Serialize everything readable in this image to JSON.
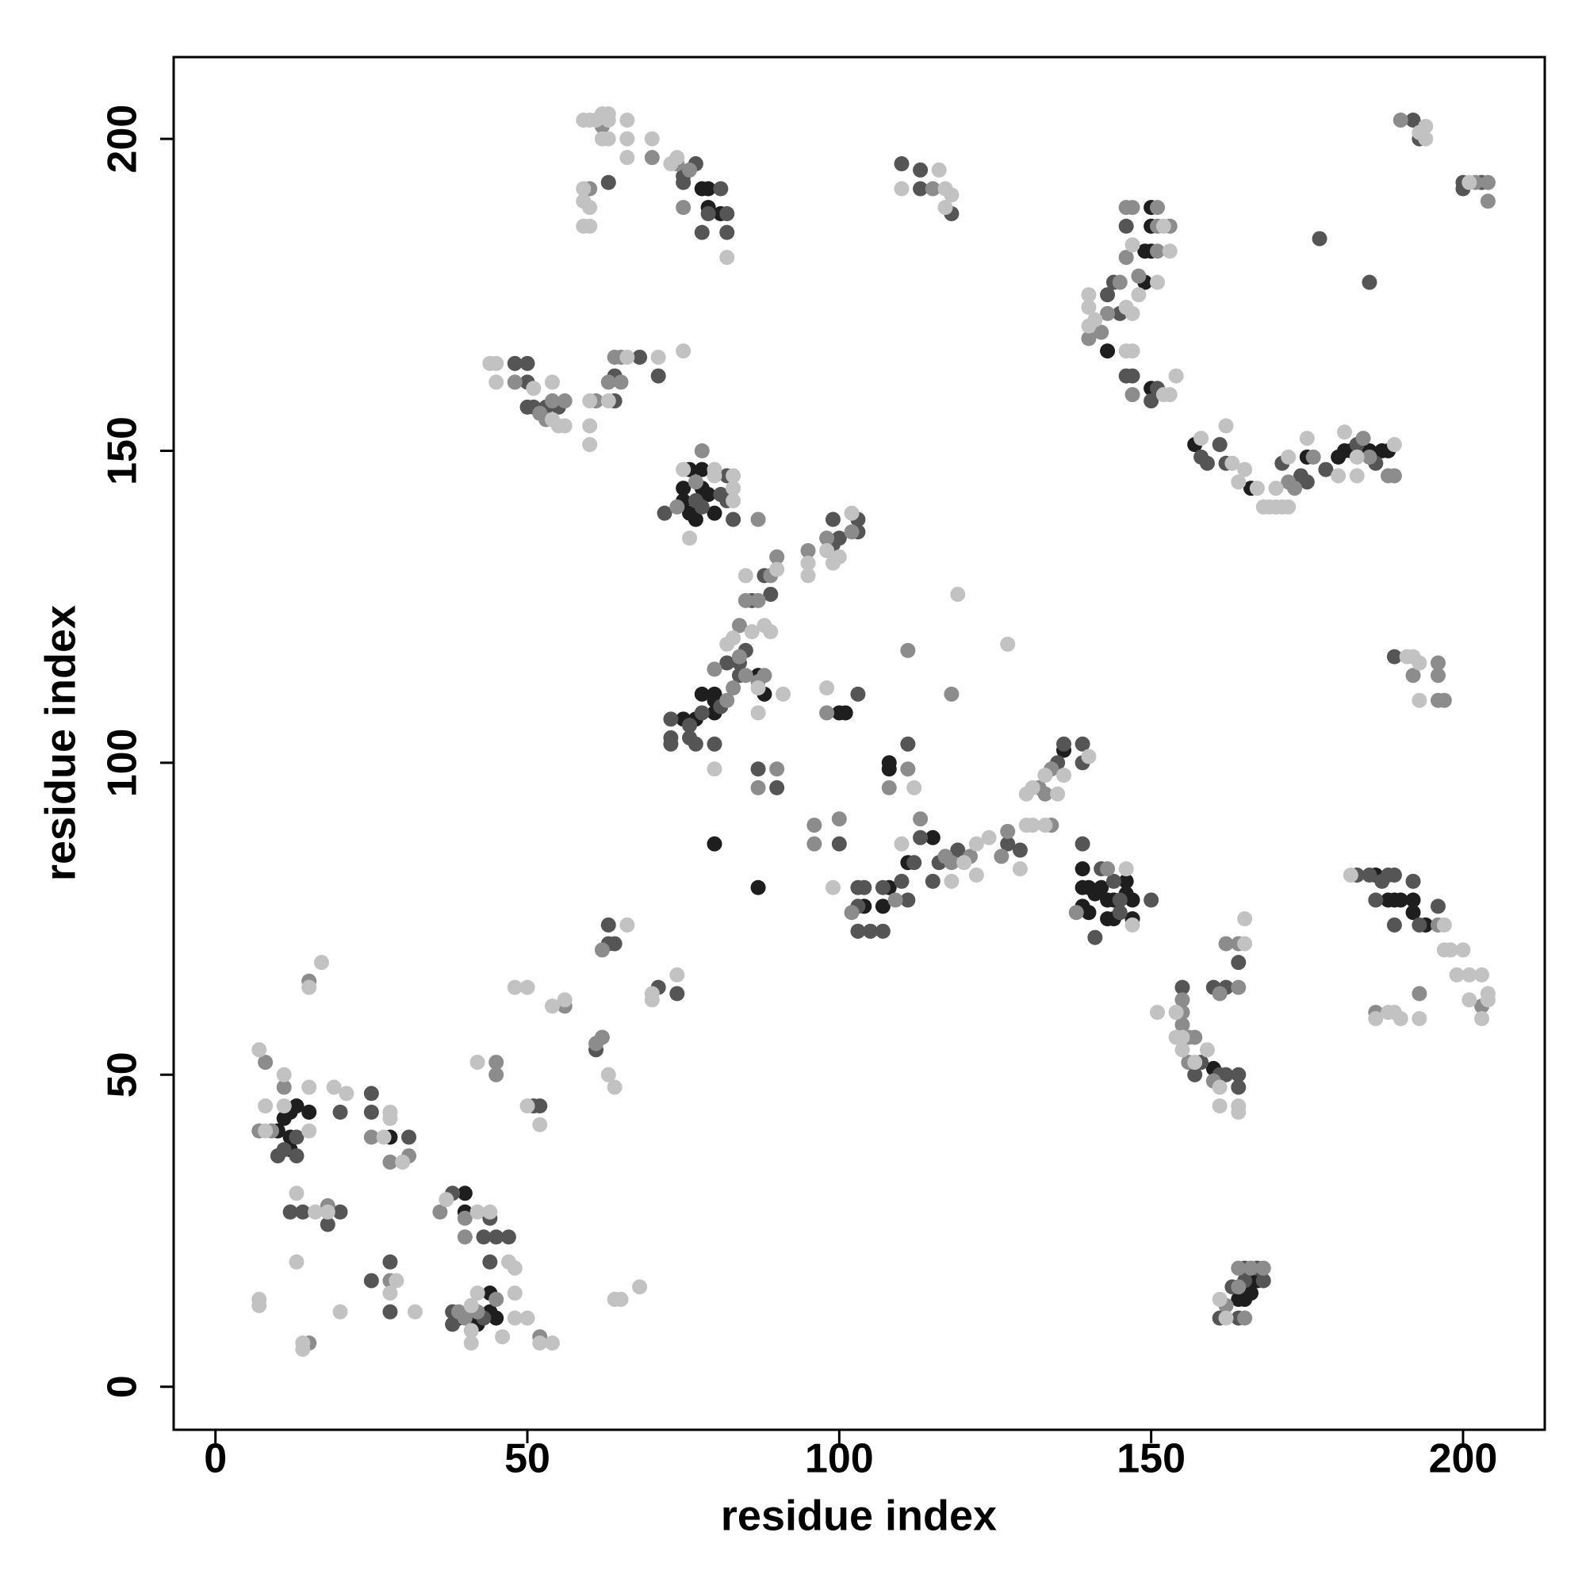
{
  "chart_data": {
    "type": "scatter",
    "x_label": "residue index",
    "y_label": "residue index",
    "xlim": [
      -6.7,
      213.1
    ],
    "ylim": [
      -6.9,
      213.1
    ],
    "xticks": [
      0,
      50,
      100,
      150,
      200
    ],
    "yticks": [
      0,
      50,
      100,
      150,
      200
    ],
    "grid": false,
    "series": [
      {
        "color": "#1e1e1e",
        "x": [
          10,
          11,
          12,
          12,
          12,
          13,
          15,
          28,
          40,
          40,
          44,
          44,
          45,
          39,
          41,
          42,
          80,
          87,
          104,
          107,
          108,
          111,
          115,
          136,
          108,
          108,
          75,
          77,
          78,
          80,
          80,
          80,
          87,
          88,
          100,
          101,
          75,
          75,
          76,
          76,
          77,
          78,
          78,
          79,
          80,
          78,
          79,
          79,
          81,
          150,
          150,
          149,
          150,
          149,
          143,
          150,
          157,
          166,
          175,
          180,
          181,
          182,
          185,
          187,
          188,
          139,
          139,
          139,
          140,
          140,
          141,
          142,
          143,
          143,
          144,
          144,
          146,
          146,
          147,
          147,
          186,
          188,
          189,
          190,
          192,
          192,
          194,
          160,
          164,
          165,
          166,
          167,
          166
        ],
        "values": [
          41,
          43,
          44,
          40,
          38,
          45,
          44,
          40,
          31,
          28,
          15,
          12,
          11,
          11,
          12,
          10,
          87,
          80,
          77,
          77,
          80,
          84,
          88,
          102,
          100,
          99,
          107,
          107,
          111,
          111,
          110,
          108,
          114,
          111,
          108,
          108,
          142,
          144,
          147,
          140,
          139,
          144,
          147,
          143,
          140,
          192,
          192,
          189,
          188,
          189,
          186,
          182,
          182,
          177,
          166,
          160,
          151,
          144,
          149,
          149,
          150,
          150,
          150,
          150,
          150,
          83,
          80,
          77,
          76,
          80,
          79,
          80,
          78,
          75,
          78,
          75,
          81,
          79,
          78,
          75,
          82,
          78,
          78,
          78,
          78,
          76,
          74,
          51,
          14,
          14,
          17,
          17,
          15
        ]
      },
      {
        "color": "#555555",
        "x": [
          13,
          11,
          13,
          10,
          25,
          25,
          31,
          20,
          14,
          12,
          18,
          20,
          25,
          28,
          28,
          38,
          44,
          43,
          45,
          47,
          44,
          43,
          38,
          38,
          51,
          52,
          61,
          63,
          63,
          64,
          71,
          74,
          87,
          90,
          100,
          103,
          103,
          105,
          103,
          107,
          107,
          110,
          111,
          112,
          113,
          116,
          115,
          119,
          127,
          129,
          135,
          136,
          139,
          139,
          111,
          104,
          73,
          73,
          73,
          76,
          76,
          77,
          78,
          81,
          80,
          84,
          84,
          82,
          85,
          86,
          89,
          88,
          103,
          99,
          100,
          99,
          103,
          103,
          72,
          77,
          78,
          81,
          82,
          82,
          83,
          48,
          50,
          50,
          50,
          51,
          53,
          55,
          64,
          64,
          68,
          71,
          75,
          75,
          77,
          79,
          81,
          82,
          82,
          78,
          63,
          110,
          113,
          113,
          118,
          146,
          144,
          143,
          145,
          146,
          147,
          151,
          150,
          158,
          159,
          161,
          162,
          171,
          174,
          175,
          178,
          183,
          186,
          192,
          193,
          200,
          203,
          200,
          177,
          185,
          189,
          139,
          142,
          144,
          145,
          145,
          150,
          141,
          183,
          185,
          187,
          188,
          189,
          192,
          193,
          196,
          186,
          189,
          155,
          157,
          158,
          161,
          162,
          164,
          164,
          160,
          162,
          164,
          161,
          164,
          165,
          168,
          165,
          167,
          163
        ],
        "values": [
          40,
          38,
          37,
          37,
          47,
          44,
          40,
          44,
          28,
          28,
          26,
          28,
          17,
          20,
          12,
          31,
          27,
          24,
          24,
          24,
          20,
          11,
          12,
          10,
          45,
          45,
          54,
          74,
          71,
          71,
          64,
          63,
          99,
          96,
          87,
          80,
          77,
          73,
          73,
          73,
          80,
          81,
          78,
          84,
          88,
          84,
          81,
          86,
          87,
          86,
          100,
          103,
          103,
          100,
          103,
          80,
          107,
          104,
          103,
          106,
          104,
          103,
          108,
          109,
          103,
          114,
          116,
          116,
          118,
          126,
          127,
          130,
          111,
          135,
          136,
          139,
          137,
          139,
          140,
          142,
          141,
          143,
          142,
          146,
          139,
          164,
          164,
          161,
          157,
          157,
          157,
          157,
          158,
          162,
          165,
          162,
          194,
          193,
          196,
          188,
          192,
          188,
          185,
          185,
          193,
          196,
          195,
          192,
          188,
          186,
          177,
          175,
          172,
          162,
          162,
          160,
          158,
          149,
          148,
          151,
          148,
          148,
          146,
          145,
          147,
          151,
          148,
          203,
          200,
          193,
          193,
          192,
          184,
          177,
          117,
          87,
          83,
          81,
          78,
          76,
          78,
          72,
          82,
          82,
          81,
          82,
          82,
          81,
          74,
          77,
          78,
          74,
          64,
          50,
          52,
          50,
          50,
          50,
          48,
          64,
          64,
          68,
          11,
          11,
          17,
          17,
          19,
          19,
          16
        ]
      },
      {
        "color": "#8c8c8c",
        "x": [
          7,
          9,
          8,
          11,
          25,
          31,
          28,
          18,
          28,
          15,
          15,
          36,
          40,
          40,
          45,
          39,
          40,
          42,
          52,
          45,
          45,
          56,
          62,
          61,
          62,
          87,
          90,
          96,
          96,
          100,
          102,
          109,
          113,
          117,
          118,
          121,
          126,
          127,
          132,
          134,
          133,
          134,
          108,
          111,
          111,
          118,
          82,
          83,
          85,
          84,
          87,
          88,
          84,
          85,
          87,
          89,
          90,
          80,
          98,
          95,
          98,
          102,
          87,
          77,
          78,
          74,
          48,
          52,
          53,
          54,
          56,
          61,
          63,
          65,
          64,
          65,
          62,
          70,
          74,
          76,
          75,
          60,
          115,
          146,
          147,
          151,
          151,
          153,
          151,
          146,
          145,
          148,
          143,
          140,
          142,
          147,
          172,
          173,
          176,
          184,
          185,
          188,
          189,
          190,
          202,
          204,
          204,
          196,
          192,
          196,
          196,
          197,
          138,
          143,
          196,
          203,
          186,
          193,
          155,
          155,
          155,
          156,
          156,
          160,
          161,
          162,
          164,
          164,
          157,
          162,
          165,
          164,
          166,
          168,
          164
        ],
        "values": [
          41,
          41,
          52,
          48,
          40,
          37,
          36,
          29,
          17,
          7,
          65,
          28,
          27,
          24,
          14,
          12,
          11,
          12,
          8,
          52,
          50,
          61,
          56,
          55,
          70,
          96,
          99,
          90,
          87,
          91,
          76,
          78,
          91,
          85,
          84,
          85,
          85,
          89,
          96,
          99,
          95,
          90,
          96,
          99,
          118,
          111,
          110,
          112,
          114,
          117,
          113,
          114,
          122,
          126,
          126,
          130,
          133,
          115,
          108,
          134,
          136,
          137,
          139,
          145,
          150,
          141,
          161,
          156,
          155,
          158,
          158,
          158,
          161,
          161,
          165,
          165,
          202,
          197,
          196,
          195,
          189,
          192,
          192,
          189,
          189,
          189,
          186,
          186,
          182,
          181,
          177,
          178,
          172,
          168,
          169,
          159,
          145,
          144,
          149,
          152,
          149,
          146,
          146,
          203,
          193,
          193,
          190,
          116,
          114,
          114,
          110,
          110,
          76,
          83,
          74,
          61,
          60,
          63,
          62,
          60,
          58,
          56,
          52,
          49,
          63,
          71,
          71,
          64,
          56,
          13,
          11,
          19,
          19,
          19,
          16
        ]
      },
      {
        "color": "#c2c2c2",
        "x": [
          8,
          15,
          8,
          7,
          11,
          15,
          19,
          21,
          27,
          28,
          28,
          30,
          11,
          13,
          16,
          18,
          13,
          29,
          28,
          32,
          20,
          7,
          7,
          14,
          14,
          15,
          17,
          37,
          42,
          44,
          47,
          48,
          48,
          41,
          42,
          41,
          41,
          48,
          50,
          54,
          52,
          46,
          42,
          48,
          50,
          50,
          52,
          54,
          56,
          63,
          64,
          64,
          65,
          68,
          66,
          70,
          70,
          74,
          99,
          110,
          118,
          120,
          122,
          122,
          124,
          129,
          130,
          130,
          131,
          133,
          136,
          140,
          135,
          131,
          133,
          112,
          119,
          127,
          80,
          82,
          83,
          86,
          87,
          87,
          89,
          88,
          85,
          90,
          91,
          98,
          95,
          95,
          98,
          102,
          100,
          99,
          75,
          80,
          80,
          83,
          83,
          83,
          76,
          44,
          45,
          45,
          51,
          54,
          55,
          56,
          54,
          60,
          60,
          60,
          63,
          71,
          75,
          66,
          59,
          60,
          61,
          62,
          63,
          63,
          62,
          63,
          66,
          66,
          66,
          70,
          73,
          74,
          82,
          59,
          59,
          60,
          59,
          60,
          110,
          116,
          117,
          117,
          118,
          152,
          147,
          153,
          151,
          148,
          140,
          140,
          141,
          140,
          146,
          147,
          152,
          153,
          154,
          146,
          147,
          158,
          162,
          163,
          164,
          165,
          167,
          168,
          169,
          170,
          170,
          171,
          172,
          172,
          175,
          181,
          183,
          189,
          183,
          180,
          193,
          194,
          194,
          201,
          191,
          192,
          193,
          193,
          146,
          147,
          182,
          197,
          197,
          198,
          199,
          200,
          201,
          201,
          203,
          204,
          204,
          203,
          186,
          188,
          189,
          190,
          193,
          151,
          154,
          154,
          155,
          155,
          157,
          159,
          161,
          161,
          164,
          164,
          165,
          165,
          162,
          161
        ],
        "values": [
          41,
          41,
          45,
          54,
          50,
          48,
          48,
          47,
          40,
          43,
          44,
          36,
          45,
          31,
          28,
          28,
          20,
          17,
          15,
          12,
          12,
          13,
          14,
          7,
          6,
          64,
          68,
          30,
          28,
          28,
          20,
          19,
          15,
          13,
          15,
          9,
          7,
          11,
          11,
          7,
          7,
          8,
          52,
          64,
          64,
          45,
          42,
          61,
          62,
          50,
          48,
          14,
          14,
          16,
          74,
          62,
          63,
          66,
          80,
          87,
          81,
          84,
          82,
          87,
          88,
          83,
          90,
          95,
          96,
          98,
          98,
          101,
          95,
          90,
          90,
          96,
          127,
          119,
          99,
          119,
          120,
          121,
          112,
          108,
          121,
          122,
          130,
          131,
          111,
          112,
          130,
          132,
          134,
          140,
          133,
          132,
          147,
          146,
          147,
          146,
          144,
          142,
          136,
          164,
          164,
          161,
          160,
          155,
          154,
          154,
          161,
          158,
          154,
          151,
          158,
          165,
          166,
          165,
          203,
          203,
          203,
          204,
          204,
          203,
          200,
          200,
          203,
          200,
          197,
          200,
          196,
          197,
          181,
          190,
          192,
          189,
          186,
          186,
          192,
          195,
          192,
          189,
          191,
          186,
          183,
          182,
          177,
          175,
          175,
          173,
          171,
          170,
          166,
          166,
          159,
          159,
          162,
          173,
          172,
          152,
          154,
          148,
          145,
          147,
          144,
          141,
          141,
          141,
          144,
          141,
          141,
          149,
          152,
          153,
          149,
          151,
          146,
          146,
          201,
          200,
          202,
          193,
          117,
          117,
          116,
          110,
          83,
          74,
          82,
          74,
          70,
          70,
          66,
          70,
          62,
          66,
          66,
          62,
          63,
          59,
          59,
          60,
          60,
          59,
          59,
          60,
          60,
          56,
          56,
          54,
          52,
          54,
          48,
          45,
          45,
          44,
          71,
          75,
          11,
          14
        ]
      }
    ]
  }
}
